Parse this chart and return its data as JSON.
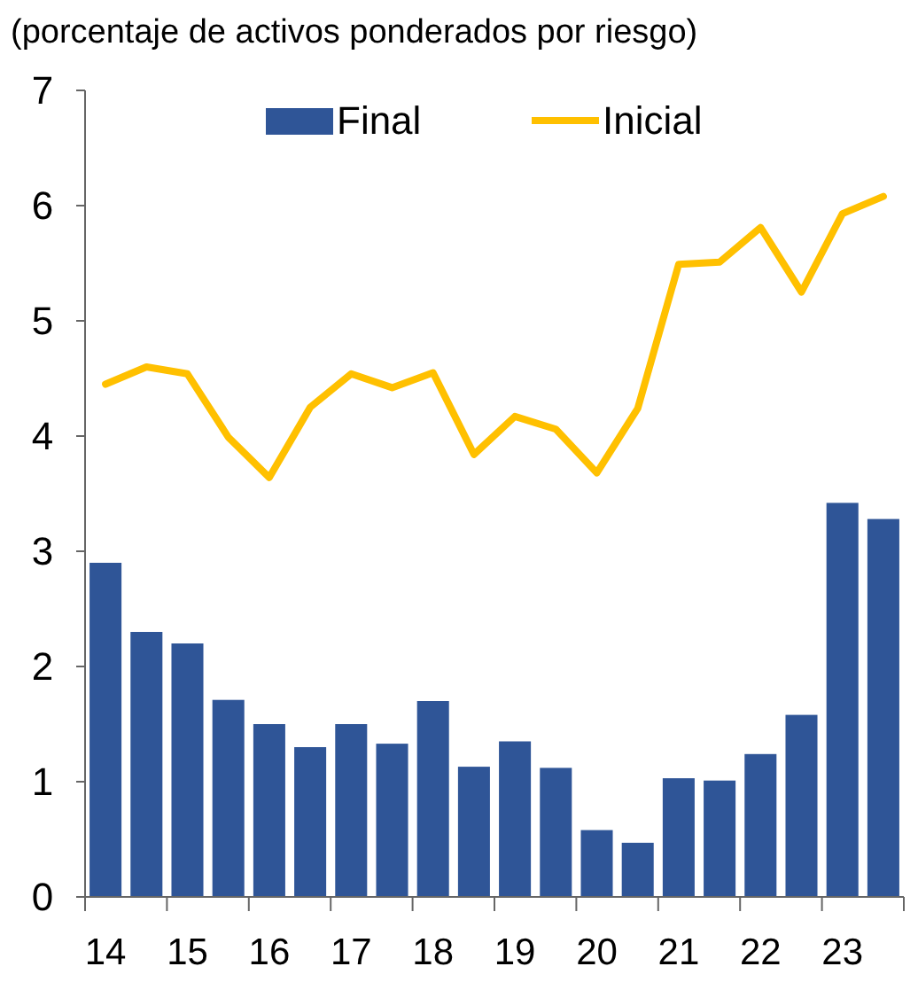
{
  "chart_data": {
    "type": "bar",
    "title": "(porcentaje de activos ponderados por riesgo)",
    "categories": [
      "14",
      null,
      "15",
      null,
      "16",
      null,
      "17",
      null,
      "18",
      null,
      "19",
      null,
      "20",
      null,
      "21",
      null,
      "22",
      null,
      "23",
      null
    ],
    "series": [
      {
        "name": "Final",
        "color": "#2f5597",
        "values": [
          2.9,
          2.3,
          2.2,
          1.71,
          1.5,
          1.3,
          1.5,
          1.33,
          1.7,
          1.13,
          1.35,
          1.12,
          0.58,
          0.47,
          1.03,
          1.01,
          1.24,
          1.58,
          3.42,
          3.28
        ]
      },
      {
        "name": "Inicial",
        "type": "line",
        "color": "#ffc000",
        "values": [
          4.45,
          4.6,
          4.54,
          3.99,
          3.64,
          4.25,
          4.54,
          4.42,
          4.55,
          3.84,
          4.17,
          4.06,
          3.68,
          4.24,
          5.49,
          5.51,
          5.81,
          5.25,
          5.93,
          6.08
        ]
      }
    ],
    "ylim": [
      0,
      7
    ],
    "yticks": [
      0,
      1,
      2,
      3,
      4,
      5,
      6,
      7
    ],
    "legend": "top",
    "grid": false
  }
}
